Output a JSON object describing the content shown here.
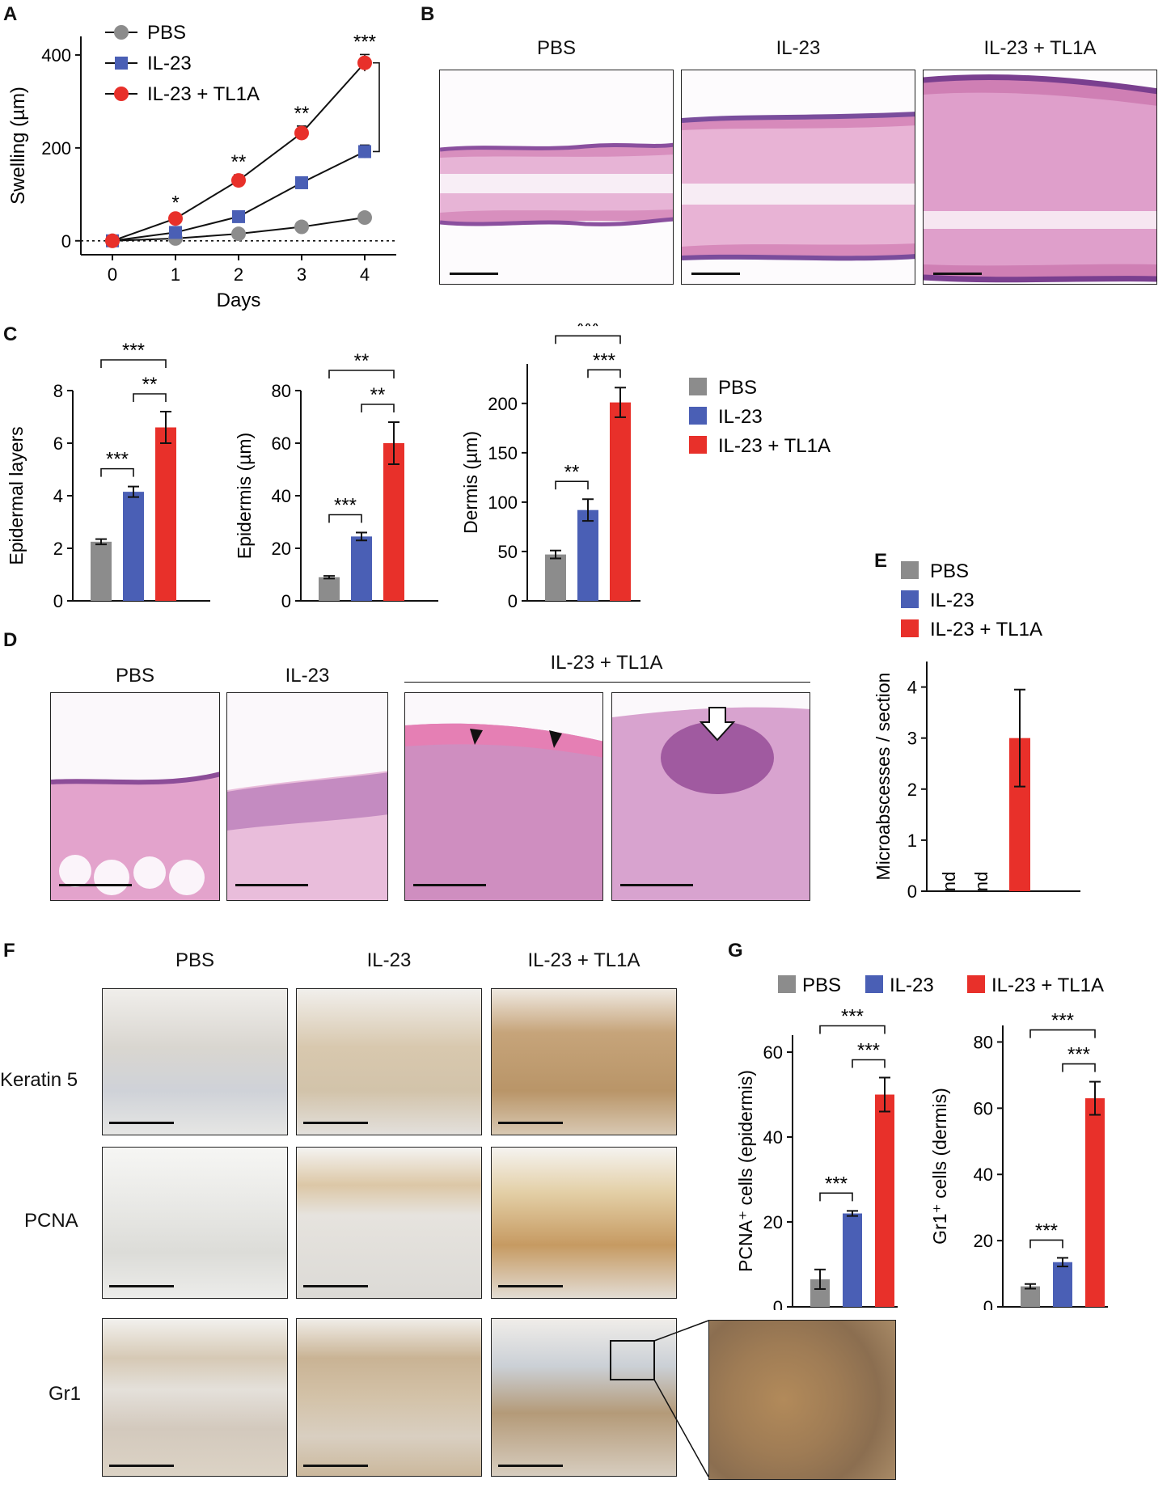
{
  "panels": {
    "A": "A",
    "B": "B",
    "C": "C",
    "D": "D",
    "E": "E",
    "F": "F",
    "G": "G"
  },
  "groups": [
    "PBS",
    "IL-23",
    "IL-23 + TL1A"
  ],
  "colors": {
    "PBS": "#8c8c8c",
    "IL-23": "#4a5fb5",
    "IL-23 + TL1A": "#e8302a"
  },
  "panel_B": {
    "titles": [
      "PBS",
      "IL-23",
      "IL-23 + TL1A"
    ]
  },
  "panel_D": {
    "titles": [
      "PBS",
      "IL-23",
      "IL-23 + TL1A"
    ]
  },
  "panel_F": {
    "col_titles": [
      "PBS",
      "IL-23",
      "IL-23 + TL1A"
    ],
    "row_labels": [
      "Keratin 5",
      "PCNA",
      "Gr1"
    ]
  },
  "chart_data": [
    {
      "id": "A",
      "type": "line",
      "xlabel": "Days",
      "ylabel": "Swelling (µm)",
      "x": [
        0,
        1,
        2,
        3,
        4
      ],
      "xlim": [
        -0.5,
        4.5
      ],
      "ylim": [
        -30,
        440
      ],
      "yticks": [
        0,
        200,
        400
      ],
      "series": [
        {
          "name": "PBS",
          "color": "#8c8c8c",
          "marker": "circle",
          "values": [
            0,
            5,
            15,
            30,
            50
          ],
          "errors": [
            0,
            3,
            4,
            5,
            8
          ]
        },
        {
          "name": "IL-23",
          "color": "#4a5fb5",
          "marker": "square",
          "values": [
            0,
            18,
            52,
            125,
            192
          ],
          "errors": [
            0,
            4,
            6,
            10,
            14
          ]
        },
        {
          "name": "IL-23 + TL1A",
          "color": "#e8302a",
          "marker": "circle",
          "values": [
            0,
            48,
            130,
            232,
            383
          ],
          "errors": [
            0,
            6,
            12,
            15,
            18
          ]
        }
      ],
      "annotations": [
        {
          "x": 1,
          "text": "*"
        },
        {
          "x": 2,
          "text": "**"
        },
        {
          "x": 3,
          "text": "**"
        },
        {
          "x": 4,
          "text": "***"
        }
      ],
      "reference_line": 0,
      "legend": "top-left"
    },
    {
      "id": "C1",
      "type": "bar",
      "ylabel": "Epidermal layers",
      "categories": [
        "PBS",
        "IL-23",
        "IL-23 + TL1A"
      ],
      "values": [
        2.25,
        4.15,
        6.6
      ],
      "errors": [
        0.1,
        0.2,
        0.6
      ],
      "ylim": [
        0,
        8
      ],
      "yticks": [
        0,
        2,
        4,
        6,
        8
      ],
      "brackets": [
        {
          "from": 0,
          "to": 1,
          "text": "***"
        },
        {
          "from": 1,
          "to": 2,
          "text": "**"
        },
        {
          "from": 0,
          "to": 2,
          "text": "***"
        }
      ]
    },
    {
      "id": "C2",
      "type": "bar",
      "ylabel": "Epidermis (µm)",
      "categories": [
        "PBS",
        "IL-23",
        "IL-23 + TL1A"
      ],
      "values": [
        9,
        24.5,
        60
      ],
      "errors": [
        0.5,
        1.5,
        8
      ],
      "ylim": [
        0,
        80
      ],
      "yticks": [
        0,
        20,
        40,
        60,
        80
      ],
      "brackets": [
        {
          "from": 0,
          "to": 1,
          "text": "***"
        },
        {
          "from": 1,
          "to": 2,
          "text": "**"
        },
        {
          "from": 0,
          "to": 2,
          "text": "**"
        }
      ]
    },
    {
      "id": "C3",
      "type": "bar",
      "ylabel": "Dermis (µm)",
      "categories": [
        "PBS",
        "IL-23",
        "IL-23 + TL1A"
      ],
      "values": [
        47,
        92,
        201
      ],
      "errors": [
        4,
        11,
        15
      ],
      "ylim": [
        0,
        240
      ],
      "yticks": [
        0,
        50,
        100,
        150,
        200
      ],
      "brackets": [
        {
          "from": 0,
          "to": 1,
          "text": "**"
        },
        {
          "from": 1,
          "to": 2,
          "text": "***"
        },
        {
          "from": 0,
          "to": 2,
          "text": "***"
        }
      ],
      "legend": "right"
    },
    {
      "id": "E",
      "type": "bar",
      "ylabel": "Microabscesses / section",
      "categories": [
        "PBS",
        "IL-23",
        "IL-23 + TL1A"
      ],
      "values": [
        0,
        0,
        3
      ],
      "errors": [
        0,
        0,
        0.95
      ],
      "labels": [
        "nd",
        "nd",
        ""
      ],
      "ylim": [
        0,
        4.5
      ],
      "yticks": [
        0,
        1,
        2,
        3,
        4
      ],
      "legend": "top"
    },
    {
      "id": "G1",
      "type": "bar",
      "ylabel": "PCNA⁺ cells (epidermis)",
      "categories": [
        "PBS",
        "IL-23",
        "IL-23 + TL1A"
      ],
      "values": [
        6.5,
        22,
        50
      ],
      "errors": [
        2.3,
        0.6,
        4
      ],
      "ylim": [
        0,
        64
      ],
      "yticks": [
        0,
        20,
        40,
        60
      ],
      "brackets": [
        {
          "from": 0,
          "to": 1,
          "text": "***"
        },
        {
          "from": 1,
          "to": 2,
          "text": "***"
        },
        {
          "from": 0,
          "to": 2,
          "text": "***"
        }
      ],
      "legend": "top"
    },
    {
      "id": "G2",
      "type": "bar",
      "ylabel": "Gr1⁺ cells (dermis)",
      "categories": [
        "PBS",
        "IL-23",
        "IL-23 + TL1A"
      ],
      "values": [
        6.2,
        13.5,
        63
      ],
      "errors": [
        0.7,
        1.3,
        5
      ],
      "ylim": [
        0,
        85
      ],
      "yticks": [
        0,
        20,
        40,
        60,
        80
      ],
      "brackets": [
        {
          "from": 0,
          "to": 1,
          "text": "***"
        },
        {
          "from": 1,
          "to": 2,
          "text": "***"
        },
        {
          "from": 0,
          "to": 2,
          "text": "***"
        }
      ]
    }
  ]
}
